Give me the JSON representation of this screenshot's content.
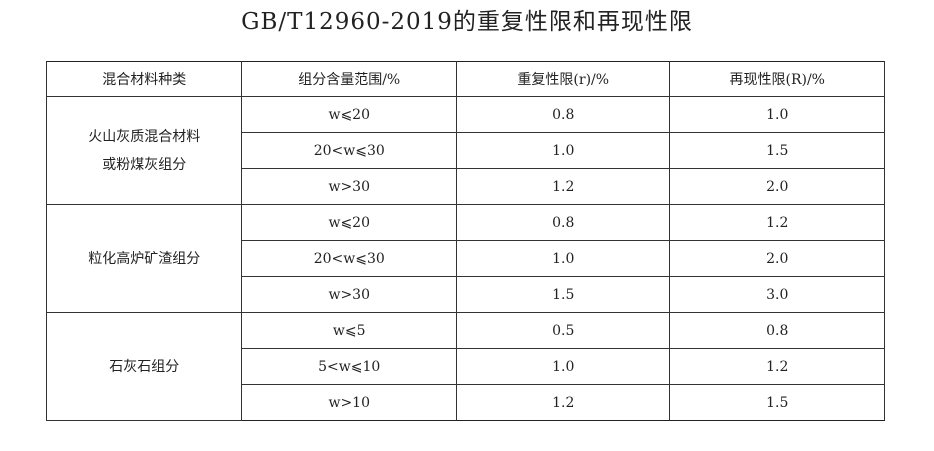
{
  "title": "GB/T12960-2019的重复性限和再现性限",
  "table": {
    "headers": [
      "混合材料种类",
      "组分含量范围/%",
      "重复性限(r)/%",
      "再现性限(R)/%"
    ],
    "groups": [
      {
        "material": [
          "火山灰质混合材料",
          "或粉煤灰组分"
        ],
        "rows": [
          [
            "w⩽20",
            "0.8",
            "1.0"
          ],
          [
            "20<w⩽30",
            "1.0",
            "1.5"
          ],
          [
            "w>30",
            "1.2",
            "2.0"
          ]
        ]
      },
      {
        "material": [
          "粒化高炉矿渣组分"
        ],
        "rows": [
          [
            "w⩽20",
            "0.8",
            "1.2"
          ],
          [
            "20<w⩽30",
            "1.0",
            "2.0"
          ],
          [
            "w>30",
            "1.5",
            "3.0"
          ]
        ]
      },
      {
        "material": [
          "石灰石组分"
        ],
        "rows": [
          [
            "w⩽5",
            "0.5",
            "0.8"
          ],
          [
            "5<w⩽10",
            "1.0",
            "1.2"
          ],
          [
            "w>10",
            "1.2",
            "1.5"
          ]
        ]
      }
    ]
  }
}
